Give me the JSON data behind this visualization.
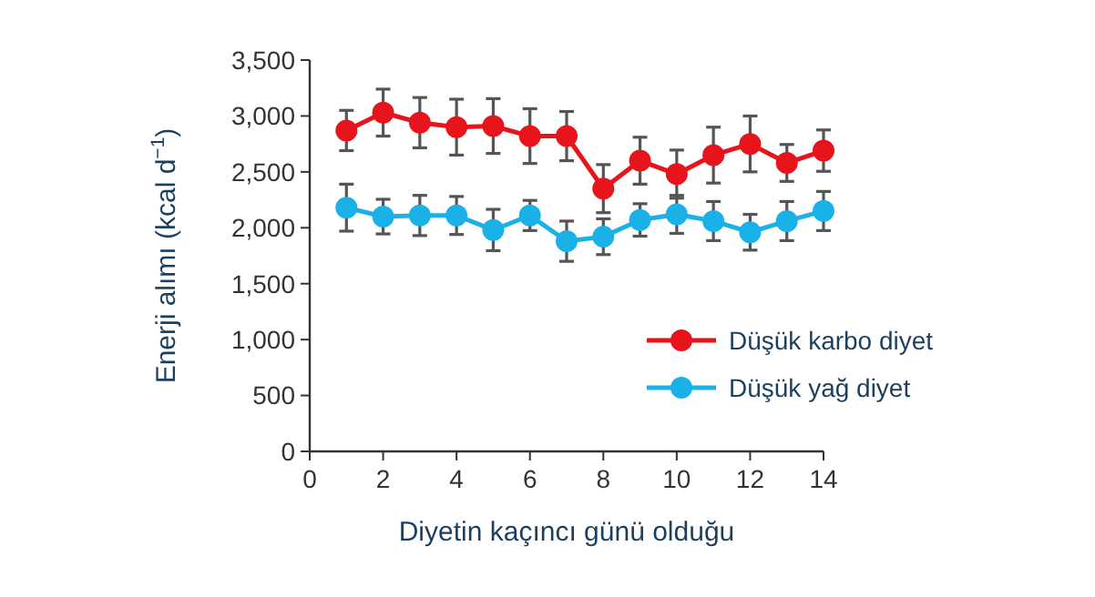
{
  "chart_data": {
    "type": "line",
    "xlabel": "Diyetin kaçıncı günü olduğu",
    "ylabel": "Enerji alımı (kcal d$^{−1}$)",
    "x": [
      1,
      2,
      3,
      4,
      5,
      6,
      7,
      8,
      9,
      10,
      11,
      12,
      13,
      14
    ],
    "xlim": [
      0,
      14
    ],
    "xticks": [
      0,
      2,
      4,
      6,
      8,
      10,
      12,
      14
    ],
    "ylim": [
      0,
      3500
    ],
    "yticks": [
      {
        "value": 0,
        "label": "0"
      },
      {
        "value": 500,
        "label": "500"
      },
      {
        "value": 1000,
        "label": "1,000"
      },
      {
        "value": 1500,
        "label": "1,500"
      },
      {
        "value": 2000,
        "label": "2,000"
      },
      {
        "value": 2500,
        "label": "2,500"
      },
      {
        "value": 3000,
        "label": "3,000"
      },
      {
        "value": 3500,
        "label": "3,500"
      }
    ],
    "series": [
      {
        "name": "Düşük karbo diyet",
        "color": "#e8141b",
        "values": [
          2870,
          3030,
          2940,
          2900,
          2910,
          2820,
          2820,
          2350,
          2600,
          2480,
          2650,
          2750,
          2580,
          2690
        ],
        "errors": [
          180,
          210,
          225,
          250,
          245,
          245,
          220,
          215,
          210,
          215,
          250,
          250,
          165,
          185
        ]
      },
      {
        "name": "Düşük yağ diyet",
        "color": "#1ab0e8",
        "values": [
          2180,
          2100,
          2110,
          2110,
          1980,
          2110,
          1880,
          1920,
          2070,
          2120,
          2060,
          1960,
          2060,
          2150
        ],
        "errors": [
          210,
          155,
          180,
          170,
          185,
          135,
          180,
          160,
          145,
          170,
          175,
          160,
          175,
          175
        ]
      }
    ],
    "marker": "circle",
    "legend": "right",
    "grid": false
  }
}
